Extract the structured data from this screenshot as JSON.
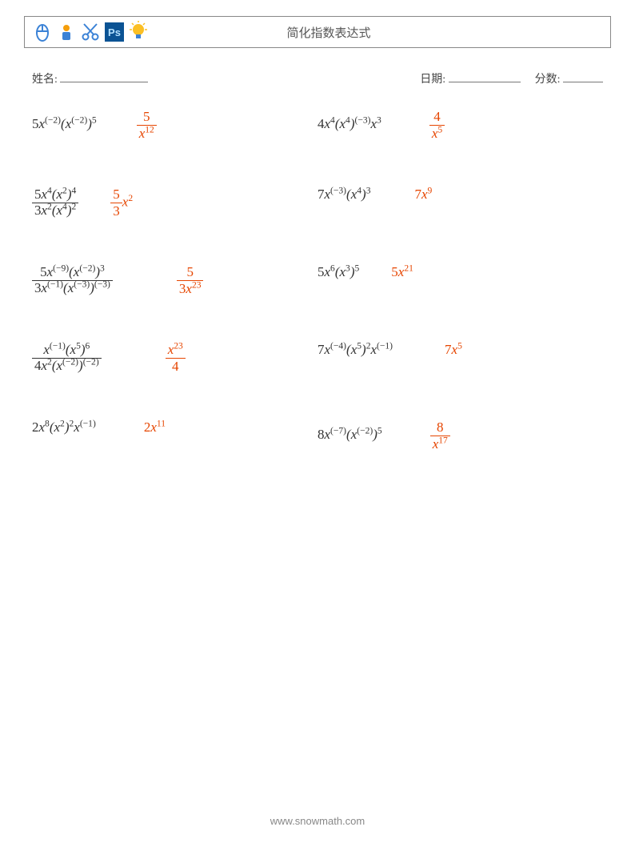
{
  "header": {
    "title": "简化指数表达式",
    "icons": [
      "mouse-icon",
      "person-icon",
      "scissors-icon",
      "ps-icon",
      "lightbulb-icon"
    ]
  },
  "meta": {
    "name_label": "姓名:",
    "date_label": "日期:",
    "score_label": "分数:"
  },
  "colors": {
    "text": "#333333",
    "answer": "#e64500",
    "border": "#888888",
    "footer": "#999999",
    "icon_blue": "#3b82d6",
    "icon_orange": "#f59e0b",
    "icon_navy": "#1e3a8a",
    "icon_cyan": "#0891b2",
    "ps_bg": "#0b5394"
  },
  "typography": {
    "base_font": "Times New Roman, serif",
    "problem_fontsize_pt": 13,
    "title_fontsize_pt": 11,
    "meta_fontsize_pt": 10
  },
  "problems": [
    {
      "left": {
        "expr_html": "<span class='n'>5</span><span class='x'>x</span><sup>(−2)</sup>(<span class='x'>x</span><sup>(−2)</sup>)<sup>5</sup>",
        "ans_html": "<span class='frac'><span class='num'><span class='n'>5</span></span><span class='den'><span class='x'>x</span><sup>12</sup></span></span>",
        "ans_indent": 50
      },
      "right": {
        "expr_html": "<span class='n'>4</span><span class='x'>x</span><sup>4</sup>(<span class='x'>x</span><sup>4</sup>)<sup>(−3)</sup><span class='x'>x</span><sup>3</sup>",
        "ans_html": "<span class='frac'><span class='num'><span class='n'>4</span></span><span class='den'><span class='x'>x</span><sup>5</sup></span></span>",
        "ans_indent": 60
      }
    },
    {
      "left": {
        "expr_html": "<span class='frac'><span class='num'><span class='n'>5</span><span class='x'>x</span><sup>4</sup>(<span class='x'>x</span><sup>2</sup>)<sup>4</sup></span><span class='den'><span class='n'>3</span><span class='x'>x</span><sup>2</sup>(<span class='x'>x</span><sup>4</sup>)<sup>2</sup></span></span>",
        "ans_html": "<span class='frac'><span class='num'><span class='n'>5</span></span><span class='den'><span class='n'>3</span></span></span><span class='x'>x</span><sup>2</sup>",
        "ans_indent": 40
      },
      "right": {
        "expr_html": "<span class='n'>7</span><span class='x'>x</span><sup>(−3)</sup>(<span class='x'>x</span><sup>4</sup>)<sup>3</sup>",
        "ans_html": "<span class='n'>7</span><span class='x'>x</span><sup>9</sup>",
        "ans_indent": 55
      }
    },
    {
      "left": {
        "expr_html": "<span class='frac'><span class='num'><span class='n'>5</span><span class='x'>x</span><sup>(−9)</sup>(<span class='x'>x</span><sup>(−2)</sup>)<sup>3</sup></span><span class='den'><span class='n'>3</span><span class='x'>x</span><sup>(−1)</sup>(<span class='x'>x</span><sup>(−3)</sup>)<sup>(−3)</sup></span></span>",
        "ans_html": "<span class='frac'><span class='num'><span class='n'>5</span></span><span class='den'><span class='n'>3</span><span class='x'>x</span><sup>23</sup></span></span>",
        "ans_indent": 80
      },
      "right": {
        "expr_html": "<span class='n'>5</span><span class='x'>x</span><sup>6</sup>(<span class='x'>x</span><sup>3</sup>)<sup>5</sup>",
        "ans_html": "<span class='n'>5</span><span class='x'>x</span><sup>21</sup>",
        "ans_indent": 40
      }
    },
    {
      "left": {
        "expr_html": "<span class='frac'><span class='num'><span class='x'>x</span><sup>(−1)</sup>(<span class='x'>x</span><sup>5</sup>)<sup>6</sup></span><span class='den'><span class='n'>4</span><span class='x'>x</span><sup>2</sup>(<span class='x'>x</span><sup>(−2)</sup>)<sup>(−2)</sup></span></span>",
        "ans_html": "<span class='frac'><span class='num'><span class='x'>x</span><sup>23</sup></span><span class='den'><span class='n'>4</span></span></span>",
        "ans_indent": 80
      },
      "right": {
        "expr_html": "<span class='n'>7</span><span class='x'>x</span><sup>(−4)</sup>(<span class='x'>x</span><sup>5</sup>)<sup>2</sup><span class='x'>x</span><sup>(−1)</sup>",
        "ans_html": "<span class='n'>7</span><span class='x'>x</span><sup>5</sup>",
        "ans_indent": 65
      }
    },
    {
      "left": {
        "expr_html": "<span class='n'>2</span><span class='x'>x</span><sup>8</sup>(<span class='x'>x</span><sup>2</sup>)<sup>2</sup><span class='x'>x</span><sup>(−1)</sup>",
        "ans_html": "<span class='n'>2</span><span class='x'>x</span><sup>11</sup>",
        "ans_indent": 60
      },
      "right": {
        "expr_html": "<span class='n'>8</span><span class='x'>x</span><sup>(−7)</sup>(<span class='x'>x</span><sup>(−2)</sup>)<sup>5</sup>",
        "ans_html": "<span class='frac'><span class='num'><span class='n'>8</span></span><span class='den'><span class='x'>x</span><sup>17</sup></span></span>",
        "ans_indent": 60
      }
    }
  ],
  "footer": {
    "text": "www.snowmath.com"
  }
}
